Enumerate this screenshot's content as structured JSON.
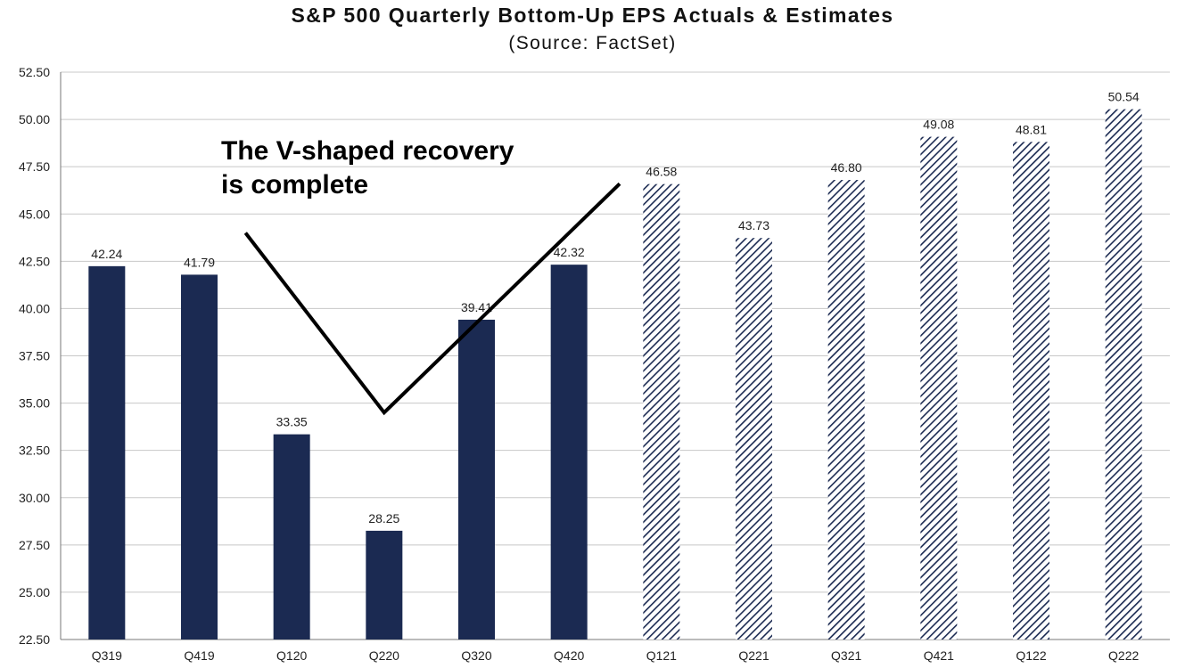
{
  "chart_data": {
    "type": "bar",
    "title": "S&P 500 Quarterly Bottom-Up EPS Actuals & Estimates",
    "subtitle": "(Source: FactSet)",
    "categories": [
      "Q319",
      "Q419",
      "Q120",
      "Q220",
      "Q320",
      "Q420",
      "Q121",
      "Q221",
      "Q321",
      "Q421",
      "Q122",
      "Q222"
    ],
    "values": [
      42.24,
      41.79,
      33.35,
      28.25,
      39.41,
      42.32,
      46.58,
      43.73,
      46.8,
      49.08,
      48.81,
      50.54
    ],
    "value_labels": [
      "42.24",
      "41.79",
      "33.35",
      "28.25",
      "39.41",
      "42.32",
      "46.58",
      "43.73",
      "46.80",
      "49.08",
      "48.81",
      "50.54"
    ],
    "bar_kind": [
      "actual",
      "actual",
      "actual",
      "actual",
      "actual",
      "actual",
      "estimate",
      "estimate",
      "estimate",
      "estimate",
      "estimate",
      "estimate"
    ],
    "ylim": [
      22.5,
      52.5
    ],
    "y_ticks": [
      "22.50",
      "25.00",
      "27.50",
      "30.00",
      "32.50",
      "35.00",
      "37.50",
      "40.00",
      "42.50",
      "45.00",
      "47.50",
      "50.00",
      "52.50"
    ],
    "xlabel": "",
    "ylabel": "",
    "grid": true,
    "legend": "none",
    "annotation": {
      "lines": [
        "The V-shaped recovery",
        "is complete"
      ],
      "v_line": [
        {
          "category": "Q419",
          "position": "between Q419 and Q120",
          "value": 44.0
        },
        {
          "category": "Q220",
          "value": 34.5
        },
        {
          "category": "Q420",
          "position": "between Q420 and Q121",
          "value": 46.6
        }
      ]
    },
    "colors": {
      "actual": "#1b2a52",
      "estimate_hatch": "#1b2a52",
      "grid": "#c8c8c8",
      "axis": "#777777"
    }
  }
}
